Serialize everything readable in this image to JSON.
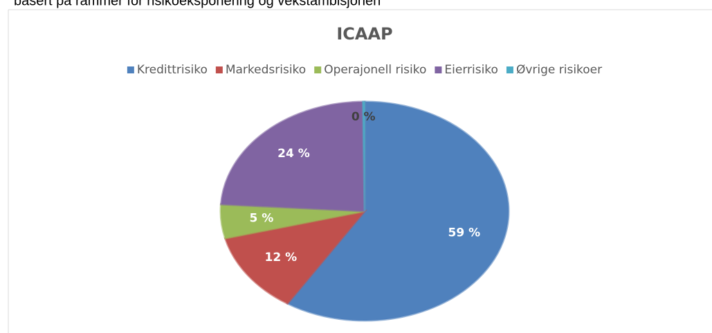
{
  "caption": "basert på rammer for risikoeksponering og vekstambisjonen",
  "chart_data": {
    "type": "pie",
    "title": "ICAAP",
    "categories": [
      "Kredittrisiko",
      "Markedsrisiko",
      "Operajonell risiko",
      "Eierrisiko",
      "Øvrige risikoer"
    ],
    "values": [
      59,
      12,
      5,
      24,
      0
    ],
    "value_labels": [
      "59 %",
      "12 %",
      "5 %",
      "24 %",
      "0 %"
    ],
    "colors": [
      "#4f81bd",
      "#c0504d",
      "#9bbb59",
      "#8064a2",
      "#4bacc6"
    ],
    "legend": "top"
  }
}
